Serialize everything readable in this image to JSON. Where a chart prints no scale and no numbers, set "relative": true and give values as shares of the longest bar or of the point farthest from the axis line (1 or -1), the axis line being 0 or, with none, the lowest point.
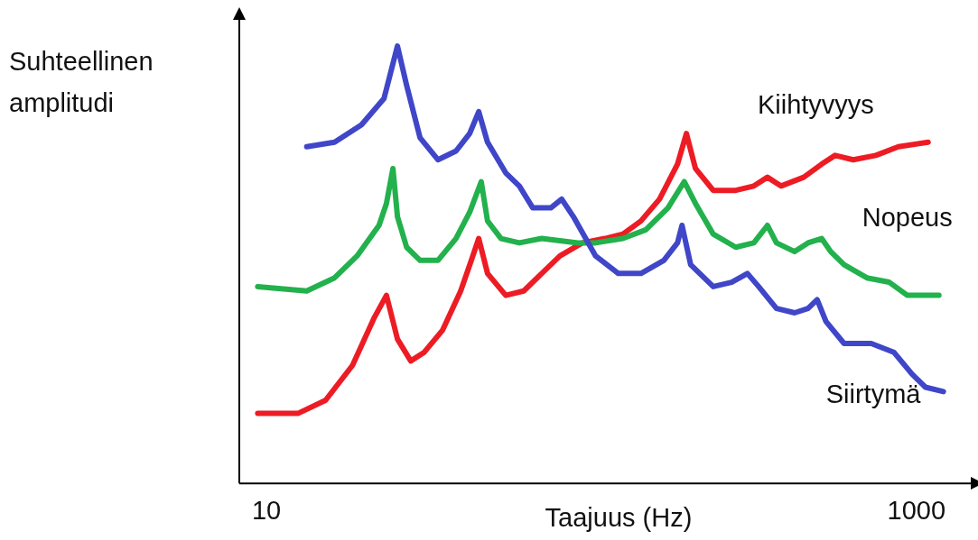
{
  "chart_data": {
    "type": "line",
    "xlabel": "Taajuus (Hz)",
    "ylabel": "Suhteellinen amplitudi",
    "relative": true,
    "log": "x",
    "xlim": [
      8.25,
      1470
    ],
    "xticks": [
      10,
      1000
    ],
    "tick_labels": "x",
    "grid": false,
    "legend": false,
    "marker": "none",
    "line_style": "solid",
    "series": [
      {
        "name": "Siirtymä",
        "color": "#4046c8",
        "x": [
          13.3,
          16.2,
          19.6,
          23.0,
          25.3,
          27.0,
          29.7,
          33.7,
          38.3,
          42.2,
          45.0,
          47.9,
          54.5,
          60.0,
          66.0,
          75.0,
          81.0,
          88.0,
          103,
          121,
          142,
          167,
          184,
          190,
          202,
          237,
          270,
          302,
          327,
          371,
          422,
          464,
          495,
          527,
          599,
          726,
          852,
          969,
          1066,
          1211
        ],
        "values": [
          0.77,
          0.78,
          0.82,
          0.88,
          1,
          0.91,
          0.79,
          0.74,
          0.76,
          0.8,
          0.85,
          0.78,
          0.71,
          0.68,
          0.63,
          0.63,
          0.65,
          0.61,
          0.52,
          0.48,
          0.48,
          0.51,
          0.55,
          0.59,
          0.5,
          0.45,
          0.46,
          0.48,
          0.45,
          0.4,
          0.39,
          0.4,
          0.42,
          0.37,
          0.32,
          0.32,
          0.3,
          0.25,
          0.22,
          0.21
        ]
      },
      {
        "name": "Nopeus",
        "color": "#22b14c",
        "x": [
          9.4,
          13.3,
          16.2,
          19.0,
          22.2,
          23.4,
          24.5,
          25.3,
          27.0,
          29.7,
          33.7,
          38.3,
          42.2,
          45.8,
          47.9,
          52.7,
          60.0,
          70.3,
          90.9,
          103,
          125,
          147,
          172,
          193,
          209,
          237,
          278,
          316,
          348,
          371,
          422,
          464,
          511,
          545,
          599,
          704,
          825,
          938,
          1173
        ],
        "values": [
          0.45,
          0.44,
          0.47,
          0.52,
          0.59,
          0.64,
          0.72,
          0.61,
          0.54,
          0.51,
          0.51,
          0.56,
          0.62,
          0.69,
          0.6,
          0.56,
          0.55,
          0.56,
          0.55,
          0.55,
          0.56,
          0.58,
          0.63,
          0.69,
          0.64,
          0.57,
          0.54,
          0.55,
          0.59,
          0.55,
          0.53,
          0.55,
          0.56,
          0.53,
          0.5,
          0.47,
          0.46,
          0.43,
          0.43
        ]
      },
      {
        "name": "Kiihtyvyys",
        "color": "#ed1c24",
        "x": [
          9.4,
          12.5,
          15.2,
          18.4,
          21.5,
          23.4,
          25.3,
          27.8,
          30.6,
          34.8,
          39.6,
          42.7,
          45.0,
          47.9,
          54.5,
          61.9,
          70.3,
          80.0,
          93.8,
          110,
          125,
          142,
          162,
          184,
          196,
          209,
          237,
          278,
          316,
          348,
          383,
          450,
          511,
          562,
          639,
          750,
          880,
          1087
        ],
        "values": [
          0.16,
          0.16,
          0.19,
          0.27,
          0.38,
          0.43,
          0.33,
          0.28,
          0.3,
          0.35,
          0.44,
          0.51,
          0.56,
          0.48,
          0.43,
          0.44,
          0.48,
          0.52,
          0.55,
          0.56,
          0.57,
          0.6,
          0.65,
          0.73,
          0.8,
          0.72,
          0.67,
          0.67,
          0.68,
          0.7,
          0.68,
          0.7,
          0.73,
          0.75,
          0.74,
          0.75,
          0.77,
          0.78
        ]
      }
    ]
  }
}
